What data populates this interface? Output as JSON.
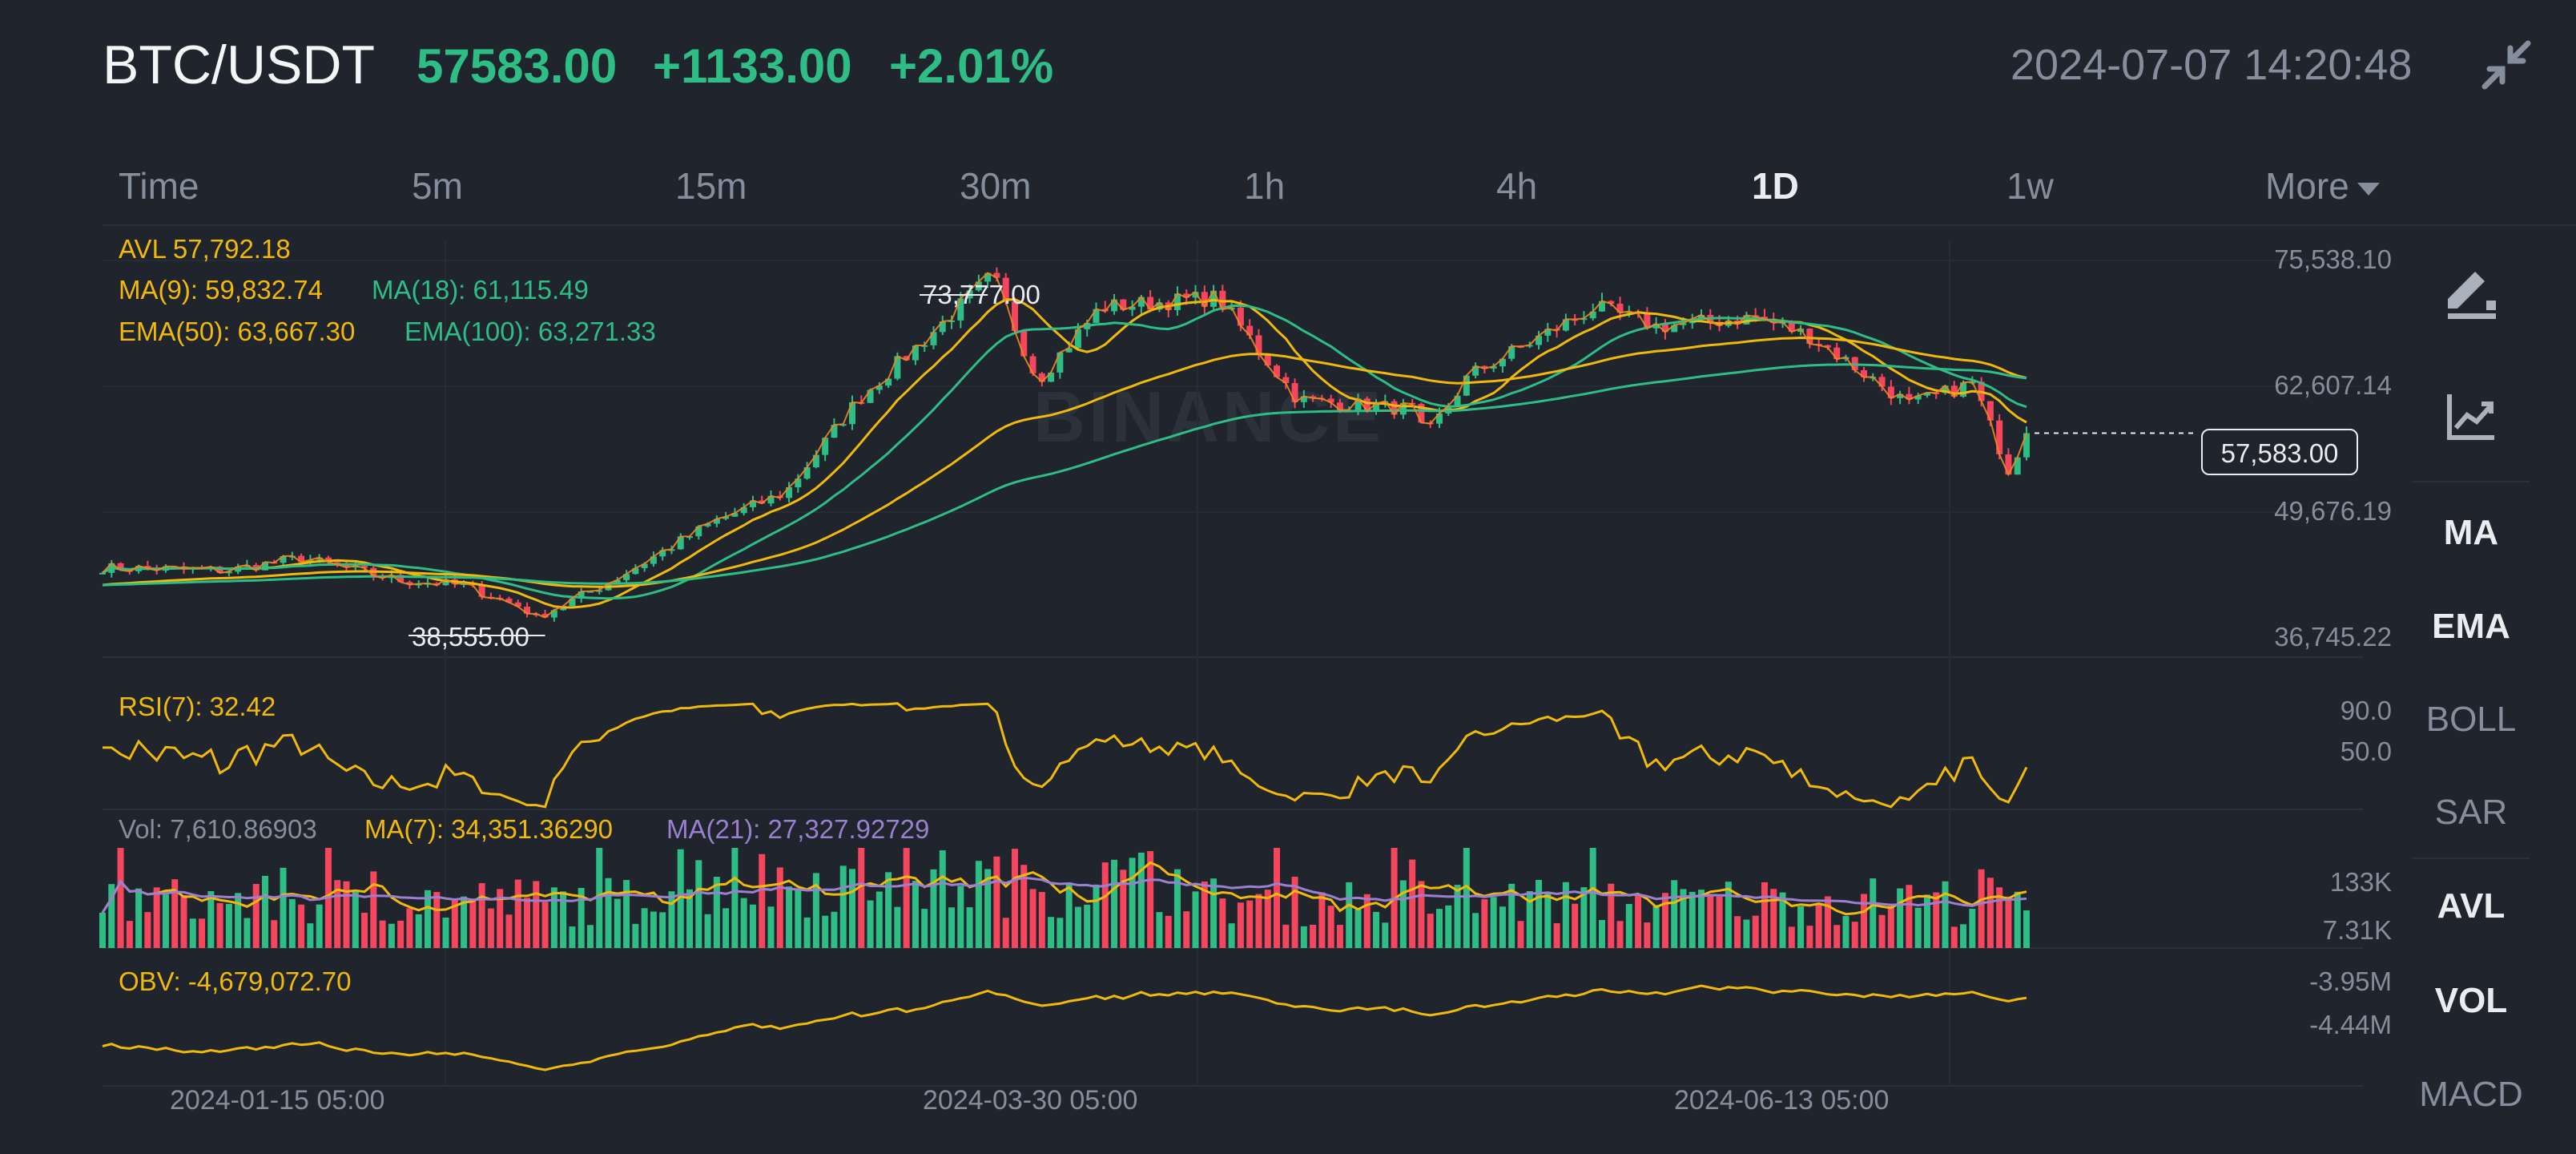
{
  "header": {
    "pair": "BTC/USDT",
    "price": "57583.00",
    "change": "+1133.00",
    "change_pct": "+2.01%",
    "datetime": "2024-07-07 14:20:48"
  },
  "tabs": [
    "Time",
    "5m",
    "15m",
    "30m",
    "1h",
    "4h",
    "1D",
    "1w"
  ],
  "active_tab": "1D",
  "more_label": "More",
  "indicators": {
    "avl": "AVL 57,792.18",
    "ma9": "MA(9): 59,832.74",
    "ma18": "MA(18): 61,115.49",
    "ema50": "EMA(50): 63,667.30",
    "ema100": "EMA(100): 63,271.33",
    "rsi": "RSI(7): 32.42",
    "vol": "Vol: 7,610.86903",
    "vol_ma7": "MA(7): 34,351.36290",
    "vol_ma21": "MA(21): 27,327.92729",
    "obv": "OBV: -4,679,072.70"
  },
  "price_axis": [
    "75,538.10",
    "62,607.14",
    "49,676.19",
    "36,745.22"
  ],
  "current_price_label": "57,583.00",
  "high_label": "73,777.00",
  "low_label": "38,555.00",
  "rsi_axis": [
    "90.0",
    "50.0"
  ],
  "vol_axis": [
    "133K",
    "7.31K"
  ],
  "obv_axis": [
    "-3.95M",
    "-4.44M"
  ],
  "x_dates": [
    "2024-01-15 05:00",
    "2024-03-30 05:00",
    "2024-06-13 05:00"
  ],
  "side_toolbar": {
    "icons": [
      "draw-icon",
      "indicator-chart-icon"
    ],
    "items": [
      {
        "label": "MA",
        "active": true
      },
      {
        "label": "EMA",
        "active": true
      },
      {
        "label": "BOLL",
        "active": false
      },
      {
        "label": "SAR",
        "active": false
      },
      {
        "label": "AVL",
        "active": true
      },
      {
        "label": "VOL",
        "active": true
      },
      {
        "label": "MACD",
        "active": false
      }
    ]
  },
  "watermark": "BINANCE",
  "colors": {
    "up": "#2ebd85",
    "down": "#f6465d",
    "yellow": "#f0b90b",
    "green_line": "#2ebd85",
    "purple": "#9b7fd0",
    "bg": "#1f242d"
  },
  "chart_data": {
    "type": "line",
    "title": "BTC/USDT 1D",
    "ylim": [
      36745.22,
      75538.1
    ],
    "x_range": [
      "2023-12-06",
      "2024-07-07"
    ],
    "close_approx": [
      [
        "2023-12-06",
        43800
      ],
      [
        "2023-12-20",
        43500
      ],
      [
        "2023-12-28",
        44800
      ],
      [
        "2024-01-08",
        42500
      ],
      [
        "2024-01-15",
        42000
      ],
      [
        "2024-01-22",
        39600
      ],
      [
        "2024-01-23",
        38555
      ],
      [
        "2024-02-01",
        42600
      ],
      [
        "2024-02-12",
        48500
      ],
      [
        "2024-02-20",
        51500
      ],
      [
        "2024-02-28",
        61000
      ],
      [
        "2024-03-05",
        66000
      ],
      [
        "2024-03-08",
        68500
      ],
      [
        "2024-03-14",
        73777
      ],
      [
        "2024-03-19",
        63000
      ],
      [
        "2024-03-26",
        70500
      ],
      [
        "2024-04-08",
        71500
      ],
      [
        "2024-04-17",
        61000
      ],
      [
        "2024-04-30",
        60000
      ],
      [
        "2024-05-01",
        57000
      ],
      [
        "2024-05-06",
        63500
      ],
      [
        "2024-05-20",
        70500
      ],
      [
        "2024-05-27",
        68500
      ],
      [
        "2024-06-07",
        69500
      ],
      [
        "2024-06-13",
        67500
      ],
      [
        "2024-06-24",
        60500
      ],
      [
        "2024-07-01",
        62700
      ],
      [
        "2024-07-05",
        53800
      ],
      [
        "2024-07-07",
        57583
      ]
    ]
  }
}
